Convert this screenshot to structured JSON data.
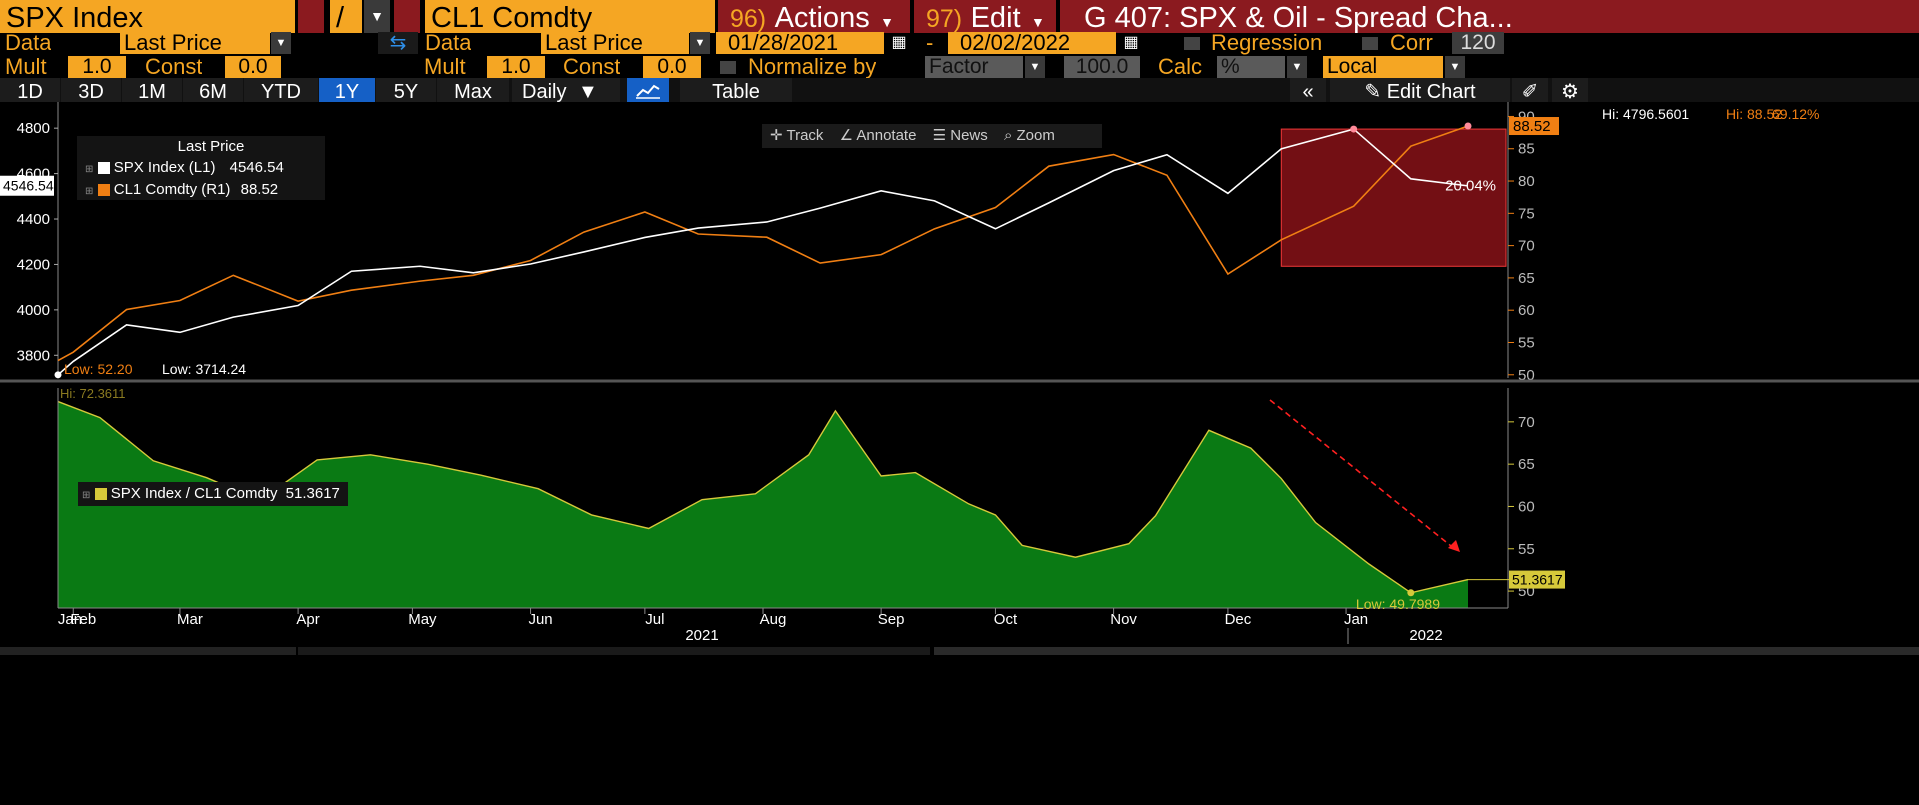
{
  "header": {
    "security1": "SPX Index",
    "operator": "/",
    "security2": "CL1 Comdty",
    "actions_num": "96)",
    "actions": "Actions",
    "edit_num": "97)",
    "edit": "Edit",
    "title": "G 407: SPX & Oil - Spread Cha..."
  },
  "row2": {
    "data_label": "Data",
    "data1_value": "Last Price",
    "data2_label": "Data",
    "data2_value": "Last Price",
    "date_start": "01/28/2021",
    "date_sep": "-",
    "date_end": "02/02/2022",
    "regression": "Regression",
    "corr": "Corr",
    "corr_value": "120"
  },
  "row3": {
    "mult_label": "Mult",
    "mult1": "1.0",
    "const_label": "Const",
    "const1": "0.0",
    "mult2_label": "Mult",
    "mult2": "1.0",
    "const2_label": "Const",
    "const2": "0.0",
    "normalize": "Normalize by",
    "normalize_value": "Factor",
    "factor_value": "100.0",
    "calc_label": "Calc",
    "calc_value": "%",
    "local_value": "Local"
  },
  "toolbar": {
    "periods": [
      "1D",
      "3D",
      "1M",
      "6M",
      "YTD",
      "1Y",
      "5Y",
      "Max"
    ],
    "selected_period": "1Y",
    "frequency": "Daily",
    "table": "Table",
    "edit_chart": "Edit Chart",
    "track": "Track",
    "annotate": "Annotate",
    "news": "News",
    "zoom": "Zoom"
  },
  "colors": {
    "spx": "#ffffff",
    "oil": "#f07f13",
    "ratio_fill": "#0a7a14",
    "ratio_line": "#d6c93a",
    "accent": "#f5a623",
    "maroon": "#8b1a1f",
    "highlight": "#7a1016"
  },
  "chart_data": [
    {
      "type": "line",
      "legend_title": "Last Price",
      "x": [
        "2021-01-28",
        "2021-02-01",
        "2021-02-15",
        "2021-03-01",
        "2021-03-15",
        "2021-04-01",
        "2021-04-15",
        "2021-05-03",
        "2021-05-17",
        "2021-06-01",
        "2021-06-15",
        "2021-07-01",
        "2021-07-15",
        "2021-08-02",
        "2021-08-16",
        "2021-09-01",
        "2021-09-15",
        "2021-10-01",
        "2021-10-15",
        "2021-11-01",
        "2021-11-15",
        "2021-12-01",
        "2021-12-15",
        "2022-01-03",
        "2022-01-18",
        "2022-02-02"
      ],
      "series": [
        {
          "name": "SPX Index (L1)",
          "axis": "left",
          "last": "4546.54",
          "values": [
            3714,
            3773,
            3934,
            3901,
            3968,
            4019,
            4170,
            4192,
            4163,
            4202,
            4255,
            4319,
            4360,
            4387,
            4448,
            4524,
            4480,
            4357,
            4471,
            4613,
            4683,
            4513,
            4709,
            4796,
            4577,
            4546
          ]
        },
        {
          "name": "CL1 Comdty (R1)",
          "axis": "right",
          "last": "88.52",
          "values": [
            52.2,
            53.5,
            60.1,
            61.5,
            65.4,
            61.4,
            63.1,
            64.5,
            65.4,
            67.7,
            72.1,
            75.2,
            71.8,
            71.3,
            67.3,
            68.6,
            72.6,
            75.9,
            82.3,
            84.1,
            80.9,
            65.6,
            70.9,
            76.1,
            85.4,
            88.52
          ]
        }
      ],
      "left_axis": {
        "ticks": [
          3800,
          4000,
          4200,
          4400,
          4600,
          4800
        ],
        "ylim": [
          3700,
          4880
        ]
      },
      "right_axis": {
        "ticks": [
          50,
          55,
          60,
          65,
          70,
          75,
          80,
          85,
          90
        ],
        "ylim": [
          49.5,
          91
        ]
      },
      "annotations": {
        "current_spx": "4546.54",
        "current_oil": "88.52",
        "spx_hi": "Hi: 4796.5601",
        "oil_hi": "Hi: 88.52",
        "pct_oil": "69.12%",
        "pct_box": "20.04%",
        "oil_low": "Low: 52.20",
        "spx_low": "Low: 3714.24"
      }
    },
    {
      "type": "area",
      "series": [
        {
          "name": "SPX Index / CL1 Comdty",
          "last": "51.3617",
          "values": [
            72.4,
            70.5,
            65.4,
            63.4,
            60.7,
            65.5,
            66.1,
            65.0,
            63.7,
            62.1,
            59.0,
            57.4,
            60.8,
            61.5,
            66.1,
            71.3,
            63.6,
            64.0,
            60.3,
            59.0,
            55.4,
            54.0,
            55.6,
            58.9,
            69.0,
            66.9,
            63.3,
            58.1,
            53.2,
            49.8,
            51.36
          ]
        }
      ],
      "x": [
        "2021-01-28",
        "2021-02-08",
        "2021-02-22",
        "2021-03-08",
        "2021-03-22",
        "2021-04-06",
        "2021-04-20",
        "2021-05-05",
        "2021-05-19",
        "2021-06-03",
        "2021-06-17",
        "2021-07-02",
        "2021-07-16",
        "2021-07-30",
        "2021-08-13",
        "2021-08-20",
        "2021-09-01",
        "2021-09-10",
        "2021-09-24",
        "2021-10-01",
        "2021-10-08",
        "2021-10-22",
        "2021-11-05",
        "2021-11-12",
        "2021-11-26",
        "2021-12-07",
        "2021-12-15",
        "2021-12-24",
        "2022-01-07",
        "2022-01-18",
        "2022-02-02"
      ],
      "right_axis": {
        "ticks": [
          50,
          55,
          60,
          65,
          70
        ],
        "ylim": [
          48,
          74
        ]
      },
      "annotations": {
        "hi": "Hi: 72.3611",
        "low": "Low: 49.7989",
        "current": "51.3617"
      }
    }
  ],
  "x_axis": {
    "months": [
      "Jan",
      "Feb",
      "Mar",
      "Apr",
      "May",
      "Jun",
      "Jul",
      "Aug",
      "Sep",
      "Oct",
      "Nov",
      "Dec",
      "Jan"
    ],
    "years": [
      "2021",
      "2022"
    ]
  }
}
